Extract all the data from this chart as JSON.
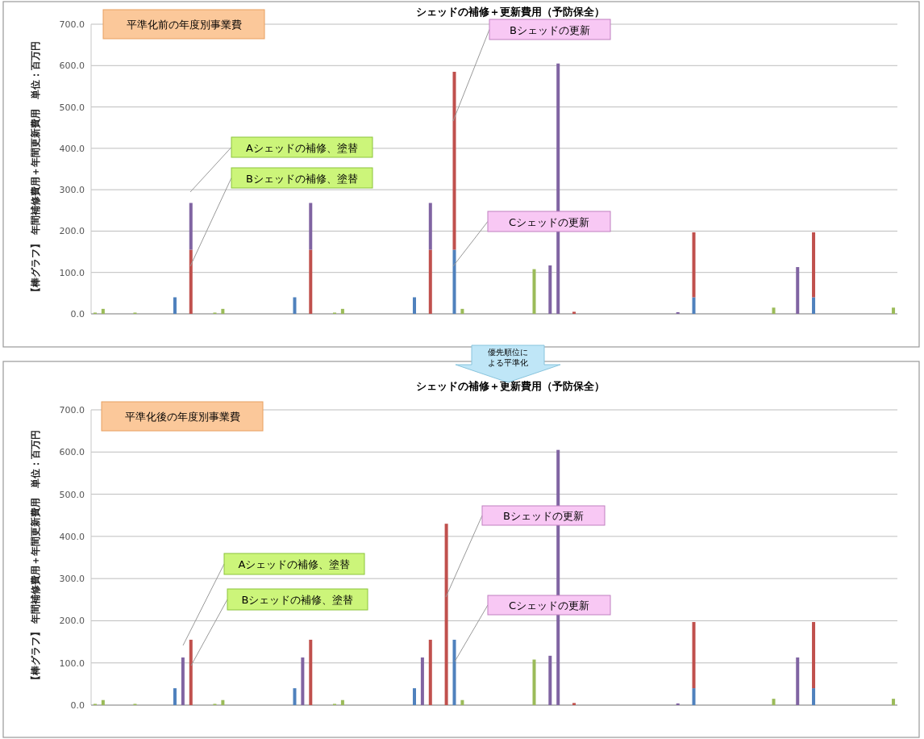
{
  "chart_data": [
    {
      "type": "bar",
      "stacked": true,
      "title": "シェッドの補修＋更新費用（予防保全）",
      "ylabel": "【棒グラフ】 年間補修費用＋年間更新費用　単位：百万円",
      "annotations": [
        "平準化前の年度別事業費",
        "Aシェッドの補修、塗替",
        "Bシェッドの補修、塗替",
        "Bシェッドの更新",
        "Cシェッドの更新"
      ],
      "categories": [
        null,
        null,
        null,
        null,
        null,
        null,
        null,
        null,
        null,
        null,
        null,
        null,
        null,
        null,
        null,
        null,
        null,
        null,
        null,
        null,
        null,
        null,
        null,
        null,
        null,
        null,
        null,
        null,
        null,
        null,
        null,
        null,
        null,
        null,
        null,
        null,
        null,
        null,
        null,
        null,
        null,
        null,
        null,
        null,
        null,
        null,
        null,
        null,
        null,
        null,
        null,
        null,
        null,
        null,
        null,
        null,
        null,
        null,
        null,
        null,
        null,
        null,
        null,
        null,
        null,
        null,
        null,
        null,
        null,
        null,
        null,
        null,
        null,
        null,
        null,
        null,
        null,
        null,
        null,
        null,
        null,
        null,
        null,
        null,
        null,
        null,
        null,
        null,
        null,
        null,
        null,
        null,
        null,
        null,
        null,
        null,
        null,
        null,
        null,
        null,
        null
      ],
      "ylim": [
        0,
        700
      ],
      "yticks": [
        {
          "value": 0,
          "label": "0.0"
        },
        {
          "value": 100,
          "label": "100.0"
        },
        {
          "value": 200,
          "label": "200.0"
        },
        {
          "value": 300,
          "label": "300.0"
        },
        {
          "value": 400,
          "label": "400.0"
        },
        {
          "value": 500,
          "label": "500.0"
        },
        {
          "value": 600,
          "label": "600.0"
        },
        {
          "value": 700,
          "label": "700.0"
        }
      ],
      "grid": true,
      "series": [
        {
          "color": "#4f81bd",
          "values": [
            null,
            null,
            null,
            null,
            null,
            null,
            null,
            null,
            null,
            null,
            40,
            null,
            null,
            null,
            null,
            null,
            null,
            null,
            null,
            null,
            null,
            null,
            null,
            null,
            null,
            40,
            null,
            null,
            null,
            null,
            null,
            null,
            null,
            null,
            null,
            null,
            null,
            null,
            null,
            null,
            40,
            null,
            null,
            null,
            null,
            155,
            null,
            null,
            null,
            null,
            null,
            null,
            null,
            null,
            null,
            null,
            null,
            null,
            null,
            null,
            null,
            null,
            null,
            null,
            null,
            null,
            null,
            null,
            null,
            null,
            null,
            null,
            null,
            null,
            null,
            40,
            null,
            null,
            null,
            null,
            null,
            null,
            null,
            null,
            null,
            null,
            null,
            null,
            null,
            null,
            40,
            null,
            null,
            null,
            null,
            null,
            null,
            null,
            null,
            null,
            null
          ]
        },
        {
          "color": "#c0504d",
          "values": [
            null,
            null,
            null,
            null,
            null,
            null,
            null,
            null,
            null,
            null,
            null,
            null,
            155,
            null,
            null,
            null,
            null,
            null,
            null,
            null,
            null,
            null,
            null,
            null,
            null,
            null,
            null,
            155,
            null,
            null,
            null,
            null,
            null,
            null,
            null,
            null,
            null,
            null,
            null,
            null,
            null,
            null,
            155,
            null,
            null,
            430,
            null,
            null,
            null,
            null,
            null,
            null,
            null,
            null,
            null,
            null,
            null,
            null,
            null,
            null,
            5,
            null,
            null,
            null,
            null,
            null,
            null,
            null,
            null,
            null,
            null,
            null,
            null,
            null,
            null,
            157,
            null,
            null,
            null,
            null,
            null,
            null,
            null,
            null,
            null,
            null,
            null,
            null,
            null,
            null,
            157,
            null,
            null,
            null,
            null,
            null,
            null,
            null,
            null,
            null,
            null
          ]
        },
        {
          "color": "#8064a2",
          "values": [
            null,
            null,
            null,
            null,
            null,
            null,
            null,
            null,
            null,
            null,
            null,
            null,
            113,
            null,
            null,
            null,
            null,
            null,
            null,
            null,
            null,
            null,
            null,
            null,
            null,
            null,
            null,
            113,
            null,
            null,
            null,
            null,
            null,
            null,
            null,
            null,
            null,
            null,
            null,
            null,
            null,
            null,
            113,
            null,
            null,
            null,
            null,
            null,
            null,
            null,
            null,
            null,
            null,
            null,
            null,
            null,
            null,
            117,
            605,
            null,
            null,
            null,
            null,
            null,
            null,
            null,
            null,
            null,
            null,
            null,
            null,
            null,
            null,
            4,
            null,
            null,
            null,
            null,
            null,
            null,
            null,
            null,
            null,
            null,
            null,
            null,
            null,
            null,
            113,
            null,
            null,
            null,
            null,
            null,
            null,
            null,
            null,
            null,
            null,
            null,
            null
          ]
        },
        {
          "color": "#9bbb59",
          "values": [
            3,
            12,
            null,
            null,
            null,
            3,
            null,
            null,
            null,
            null,
            null,
            null,
            null,
            null,
            null,
            3,
            12,
            null,
            null,
            null,
            null,
            null,
            null,
            null,
            null,
            null,
            null,
            null,
            null,
            null,
            3,
            12,
            null,
            null,
            null,
            null,
            null,
            null,
            null,
            null,
            null,
            null,
            null,
            null,
            null,
            null,
            12,
            null,
            null,
            null,
            null,
            null,
            null,
            null,
            null,
            108,
            null,
            null,
            null,
            null,
            null,
            null,
            null,
            null,
            null,
            null,
            null,
            null,
            null,
            null,
            null,
            null,
            null,
            null,
            null,
            null,
            null,
            null,
            null,
            null,
            null,
            null,
            null,
            null,
            null,
            15,
            null,
            null,
            null,
            null,
            null,
            null,
            null,
            null,
            null,
            null,
            null,
            null,
            null,
            null,
            15
          ]
        }
      ]
    },
    {
      "type": "bar",
      "stacked": true,
      "title": "シェッドの補修＋更新費用（予防保全）",
      "ylabel": "【棒グラフ】 年間補修費用＋年間更新費用　単位：百万円",
      "annotations": [
        "平準化後の年度別事業費",
        "Aシェッドの補修、塗替",
        "Bシェッドの補修、塗替",
        "Bシェッドの更新",
        "Cシェッドの更新",
        "優先順位による平準化"
      ],
      "categories": [
        null,
        null,
        null,
        null,
        null,
        null,
        null,
        null,
        null,
        null,
        null,
        null,
        null,
        null,
        null,
        null,
        null,
        null,
        null,
        null,
        null,
        null,
        null,
        null,
        null,
        null,
        null,
        null,
        null,
        null,
        null,
        null,
        null,
        null,
        null,
        null,
        null,
        null,
        null,
        null,
        null,
        null,
        null,
        null,
        null,
        null,
        null,
        null,
        null,
        null,
        null,
        null,
        null,
        null,
        null,
        null,
        null,
        null,
        null,
        null,
        null,
        null,
        null,
        null,
        null,
        null,
        null,
        null,
        null,
        null,
        null,
        null,
        null,
        null,
        null,
        null,
        null,
        null,
        null,
        null,
        null,
        null,
        null,
        null,
        null,
        null,
        null,
        null,
        null,
        null,
        null,
        null,
        null,
        null,
        null,
        null,
        null,
        null,
        null,
        null,
        null
      ],
      "ylim": [
        0,
        700
      ],
      "yticks": [
        {
          "value": 0,
          "label": "0.0"
        },
        {
          "value": 100,
          "label": "100.0"
        },
        {
          "value": 200,
          "label": "200.0"
        },
        {
          "value": 300,
          "label": "300.0"
        },
        {
          "value": 400,
          "label": "400.0"
        },
        {
          "value": 500,
          "label": "500.0"
        },
        {
          "value": 600,
          "label": "600.0"
        },
        {
          "value": 700,
          "label": "700.0"
        }
      ],
      "grid": true,
      "series": [
        {
          "color": "#4f81bd",
          "values": [
            null,
            null,
            null,
            null,
            null,
            null,
            null,
            null,
            null,
            null,
            40,
            null,
            null,
            null,
            null,
            null,
            null,
            null,
            null,
            null,
            null,
            null,
            null,
            null,
            null,
            40,
            null,
            null,
            null,
            null,
            null,
            null,
            null,
            null,
            null,
            null,
            null,
            null,
            null,
            null,
            40,
            null,
            null,
            null,
            null,
            155,
            null,
            null,
            null,
            null,
            null,
            null,
            null,
            null,
            null,
            null,
            null,
            null,
            null,
            null,
            null,
            null,
            null,
            null,
            null,
            null,
            null,
            null,
            null,
            null,
            null,
            null,
            null,
            null,
            null,
            40,
            null,
            null,
            null,
            null,
            null,
            null,
            null,
            null,
            null,
            null,
            null,
            null,
            null,
            null,
            40,
            null,
            null,
            null,
            null,
            null,
            null,
            null,
            null,
            null,
            null
          ]
        },
        {
          "color": "#c0504d",
          "values": [
            null,
            null,
            null,
            null,
            null,
            null,
            null,
            null,
            null,
            null,
            null,
            null,
            155,
            null,
            null,
            null,
            null,
            null,
            null,
            null,
            null,
            null,
            null,
            null,
            null,
            null,
            null,
            155,
            null,
            null,
            null,
            null,
            null,
            null,
            null,
            null,
            null,
            null,
            null,
            null,
            null,
            null,
            155,
            null,
            430,
            null,
            null,
            null,
            null,
            null,
            null,
            null,
            null,
            null,
            null,
            null,
            null,
            null,
            null,
            null,
            5,
            null,
            null,
            null,
            null,
            null,
            null,
            null,
            null,
            null,
            null,
            null,
            null,
            null,
            null,
            157,
            null,
            null,
            null,
            null,
            null,
            null,
            null,
            null,
            null,
            null,
            null,
            null,
            null,
            null,
            157,
            null,
            null,
            null,
            null,
            null,
            null,
            null,
            null,
            null,
            null
          ]
        },
        {
          "color": "#8064a2",
          "values": [
            null,
            null,
            null,
            null,
            null,
            null,
            null,
            null,
            null,
            null,
            null,
            113,
            null,
            null,
            null,
            null,
            null,
            null,
            null,
            null,
            null,
            null,
            null,
            null,
            null,
            null,
            113,
            null,
            null,
            null,
            null,
            null,
            null,
            null,
            null,
            null,
            null,
            null,
            null,
            null,
            null,
            113,
            null,
            null,
            null,
            null,
            null,
            null,
            null,
            null,
            null,
            null,
            null,
            null,
            null,
            null,
            null,
            117,
            605,
            null,
            null,
            null,
            null,
            null,
            null,
            null,
            null,
            null,
            null,
            null,
            null,
            null,
            null,
            4,
            null,
            null,
            null,
            null,
            null,
            null,
            null,
            null,
            null,
            null,
            null,
            null,
            null,
            null,
            113,
            null,
            null,
            null,
            null,
            null,
            null,
            null,
            null,
            null,
            null,
            null,
            null
          ]
        },
        {
          "color": "#9bbb59",
          "values": [
            3,
            12,
            null,
            null,
            null,
            3,
            null,
            null,
            null,
            null,
            null,
            null,
            null,
            null,
            null,
            3,
            12,
            null,
            null,
            null,
            null,
            null,
            null,
            null,
            null,
            null,
            null,
            null,
            null,
            null,
            3,
            12,
            null,
            null,
            null,
            null,
            null,
            null,
            null,
            null,
            null,
            null,
            null,
            null,
            null,
            null,
            12,
            null,
            null,
            null,
            null,
            null,
            null,
            null,
            null,
            108,
            null,
            null,
            null,
            null,
            null,
            null,
            null,
            null,
            null,
            null,
            null,
            null,
            null,
            null,
            null,
            null,
            null,
            null,
            null,
            null,
            null,
            null,
            null,
            null,
            null,
            null,
            null,
            null,
            null,
            15,
            null,
            null,
            null,
            null,
            null,
            null,
            null,
            null,
            null,
            null,
            null,
            null,
            null,
            null,
            15
          ]
        }
      ]
    }
  ]
}
